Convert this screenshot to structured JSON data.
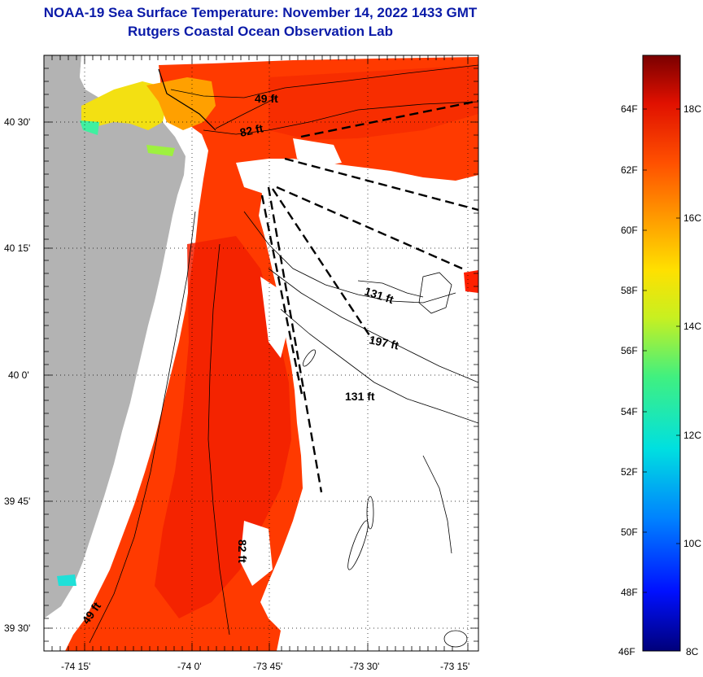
{
  "header": {
    "title_line1": "NOAA-19 Sea Surface Temperature:  November 14, 2022 1433 GMT",
    "title_line2": "Rutgers Coastal Ocean Observation Lab"
  },
  "map": {
    "lat_labels": [
      "40 30'",
      "40 15'",
      "40 0'",
      "39 45'",
      "39 30'"
    ],
    "lon_labels": [
      "-74 15'",
      "-74 0'",
      "-73 45'",
      "-73 30'",
      "-73 15'"
    ],
    "depth_labels": [
      "49 ft",
      "82 ft",
      "131 ft",
      "197 ft",
      "131 ft",
      "82 ft",
      "49 ft"
    ]
  },
  "colorbar": {
    "fahrenheit_labels": [
      "64F",
      "62F",
      "60F",
      "58F",
      "56F",
      "54F",
      "52F",
      "50F",
      "48F",
      "46F"
    ],
    "celsius_labels": [
      "18C",
      "16C",
      "14C",
      "12C",
      "10C",
      "8C"
    ]
  },
  "colors": {
    "title": "#0a1aa8",
    "land": "#b3b3b3",
    "sst_warm": "#ff2a00",
    "sst_mid": "#ff5000",
    "sst_yellow": "#f0e010"
  }
}
